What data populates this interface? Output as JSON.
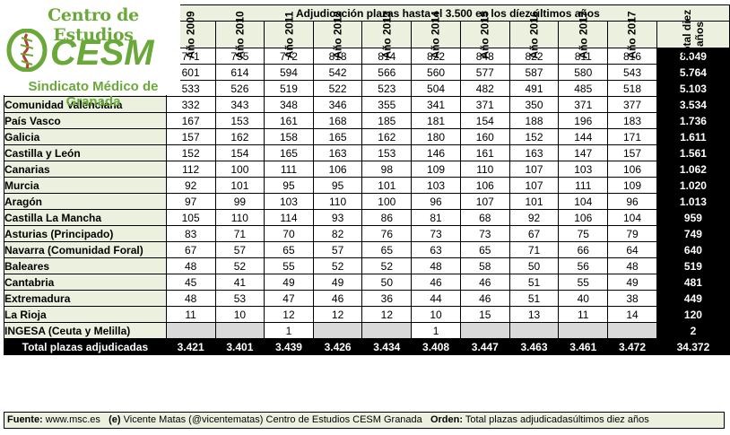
{
  "logo": {
    "top_text": "Centro de Estudios",
    "acronym": "CESM",
    "bottom_text": "Sindicato Médico de Granada"
  },
  "title": "Adjudicación plazas hasta el 3.500 en los díez últimos años",
  "columns": [
    "Año 2009",
    "Año 2010",
    "Año 2011",
    "Año 2012",
    "Año 2013",
    "Año 2014",
    "Año 2015",
    "Año 2016",
    "Año 2017",
    "Año 2017",
    "Total diez años"
  ],
  "rows": [
    {
      "name": "Madrid",
      "values": [
        "771",
        "755",
        "772",
        "818",
        "814",
        "822",
        "848",
        "822",
        "811",
        "816"
      ],
      "total": "8.049"
    },
    {
      "name": "Cataluña",
      "values": [
        "601",
        "614",
        "594",
        "542",
        "566",
        "560",
        "577",
        "587",
        "580",
        "543"
      ],
      "total": "5.764"
    },
    {
      "name": "Andalucía",
      "values": [
        "533",
        "526",
        "519",
        "522",
        "523",
        "504",
        "482",
        "491",
        "485",
        "518"
      ],
      "total": "5.103"
    },
    {
      "name": "Comunidad Valenciana",
      "values": [
        "332",
        "343",
        "348",
        "346",
        "355",
        "341",
        "371",
        "350",
        "371",
        "377"
      ],
      "total": "3.534"
    },
    {
      "name": "País Vasco",
      "values": [
        "167",
        "153",
        "161",
        "168",
        "185",
        "181",
        "154",
        "188",
        "196",
        "183"
      ],
      "total": "1.736"
    },
    {
      "name": "Galicia",
      "values": [
        "157",
        "162",
        "158",
        "165",
        "162",
        "180",
        "160",
        "152",
        "144",
        "171"
      ],
      "total": "1.611"
    },
    {
      "name": "Castilla y León",
      "values": [
        "152",
        "154",
        "165",
        "163",
        "153",
        "146",
        "161",
        "163",
        "147",
        "157"
      ],
      "total": "1.561"
    },
    {
      "name": "Canarias",
      "values": [
        "112",
        "100",
        "111",
        "106",
        "98",
        "109",
        "110",
        "107",
        "103",
        "106"
      ],
      "total": "1.062"
    },
    {
      "name": "Murcia",
      "values": [
        "92",
        "101",
        "95",
        "95",
        "101",
        "103",
        "106",
        "107",
        "111",
        "109"
      ],
      "total": "1.020"
    },
    {
      "name": "Aragón",
      "values": [
        "97",
        "99",
        "103",
        "110",
        "100",
        "96",
        "107",
        "101",
        "104",
        "96"
      ],
      "total": "1.013"
    },
    {
      "name": "Castilla La Mancha",
      "values": [
        "105",
        "110",
        "114",
        "93",
        "86",
        "81",
        "68",
        "92",
        "106",
        "104"
      ],
      "total": "959"
    },
    {
      "name": "Asturias (Principado)",
      "values": [
        "83",
        "71",
        "70",
        "82",
        "76",
        "73",
        "73",
        "67",
        "75",
        "79"
      ],
      "total": "749"
    },
    {
      "name": "Navarra (Comunidad Foral)",
      "values": [
        "67",
        "57",
        "65",
        "57",
        "65",
        "63",
        "65",
        "71",
        "66",
        "64"
      ],
      "total": "640"
    },
    {
      "name": "Baleares",
      "values": [
        "48",
        "52",
        "55",
        "52",
        "52",
        "48",
        "58",
        "50",
        "56",
        "48"
      ],
      "total": "519"
    },
    {
      "name": "Cantabria",
      "values": [
        "45",
        "41",
        "49",
        "49",
        "50",
        "46",
        "46",
        "51",
        "55",
        "49"
      ],
      "total": "481"
    },
    {
      "name": "Extremadura",
      "values": [
        "48",
        "53",
        "47",
        "46",
        "36",
        "44",
        "46",
        "51",
        "40",
        "38"
      ],
      "total": "449"
    },
    {
      "name": "La Rioja",
      "values": [
        "11",
        "10",
        "12",
        "12",
        "12",
        "10",
        "15",
        "13",
        "11",
        "14"
      ],
      "total": "120"
    },
    {
      "name": "INGESA (Ceuta y Melilla)",
      "values": [
        "",
        "",
        "1",
        "",
        "",
        "1",
        "",
        "",
        "",
        ""
      ],
      "total": "2"
    }
  ],
  "summary": {
    "label": "Total plazas adjudicadas",
    "values": [
      "3.421",
      "3.401",
      "3.439",
      "3.426",
      "3.434",
      "3.408",
      "3.447",
      "3.463",
      "3.461",
      "3.472"
    ],
    "total": "34.372"
  },
  "footer": {
    "source_label": "Fuente:",
    "source": "www.msc.es",
    "author_label": "(e)",
    "author": "Vicente Matas (@vicentematas) Centro de Estudios CESM Granada",
    "order_label": "Orden:",
    "order": "Total plazas adjudicadasúltimos diez años"
  },
  "colors": {
    "header_bg": "#ebf1de",
    "total_bg": "#000000",
    "logo_green": "#6aa83a",
    "logo_red": "#c0392b",
    "gray_cell": "#d9d9d9"
  }
}
